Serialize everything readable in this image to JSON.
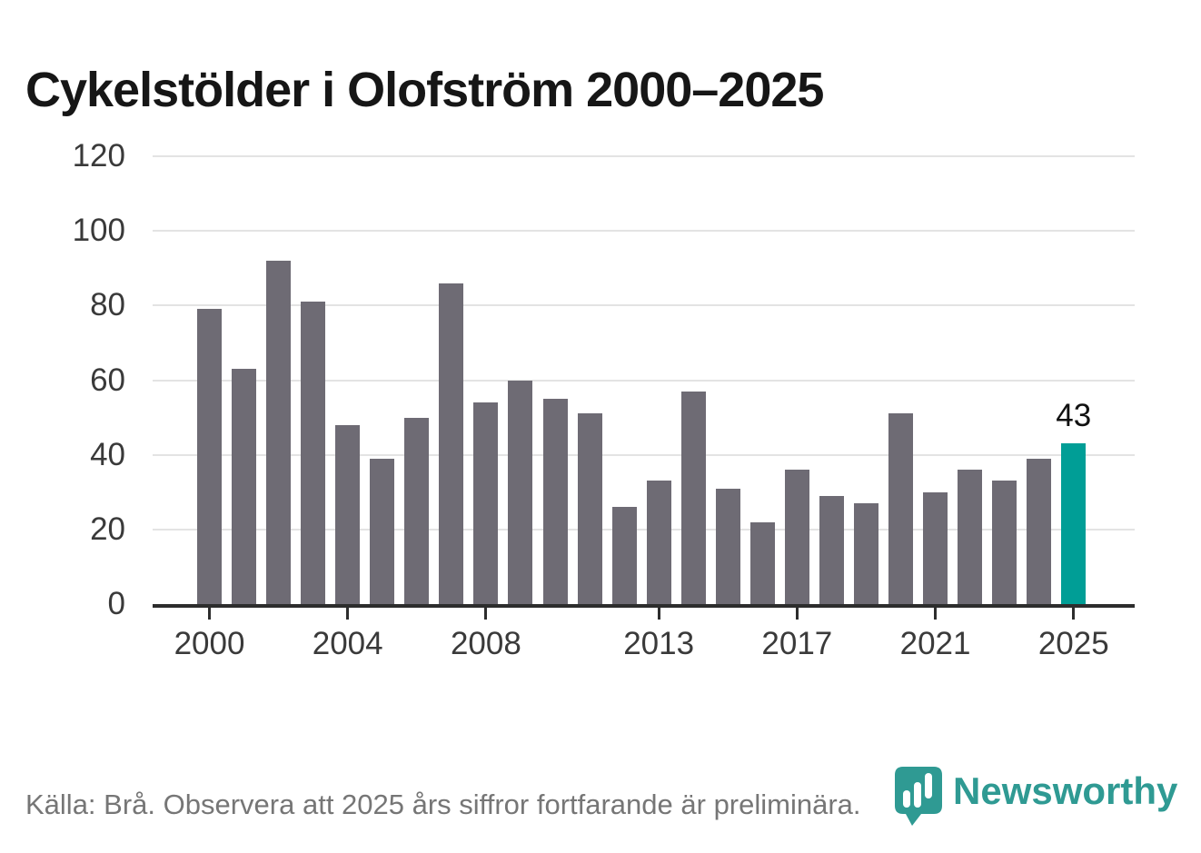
{
  "page": {
    "title": "Cykelstölder i Olofström 2000–2025"
  },
  "footer": {
    "source": "Källa: Brå. Observera att 2025 års siffror fortfarande är preliminära.",
    "brand": "Newsworthy"
  },
  "colors": {
    "bar": "#6e6b74",
    "bar_highlight": "#009e96",
    "logo_teal": "#2f9a93",
    "grid": "#e3e3e3",
    "axis": "#2d2d2d",
    "title_text": "#161616",
    "axis_text": "#3a3a3a",
    "footer_text": "#767676",
    "annotation_text": "#111111"
  },
  "chart_data": {
    "type": "bar",
    "title": "Cykelstölder i Olofström 2000–2025",
    "xlabel": "",
    "ylabel": "",
    "ylim": [
      0,
      120
    ],
    "yticks": [
      0,
      20,
      40,
      60,
      80,
      100,
      120
    ],
    "xticks_shown": [
      2000,
      2004,
      2008,
      2013,
      2017,
      2021,
      2025
    ],
    "grid": "horizontal",
    "legend": "none",
    "categories": [
      2000,
      2001,
      2002,
      2003,
      2004,
      2005,
      2006,
      2007,
      2008,
      2009,
      2010,
      2011,
      2012,
      2013,
      2014,
      2015,
      2016,
      2017,
      2018,
      2019,
      2020,
      2021,
      2022,
      2023,
      2024,
      2025
    ],
    "values": [
      79,
      63,
      92,
      81,
      48,
      39,
      50,
      86,
      54,
      60,
      55,
      51,
      26,
      33,
      57,
      31,
      22,
      36,
      29,
      27,
      51,
      30,
      36,
      33,
      39,
      43
    ],
    "highlight_year": 2025,
    "annotation": {
      "year": 2025,
      "text": "43"
    }
  }
}
